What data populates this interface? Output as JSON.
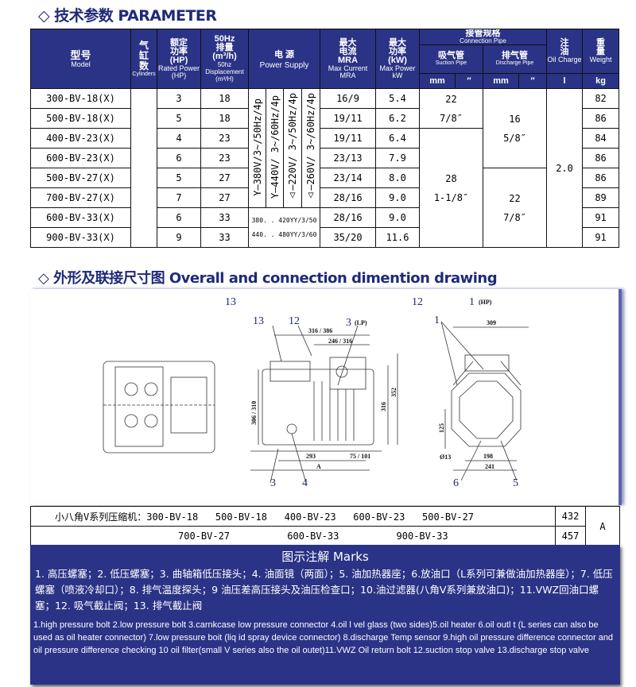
{
  "section1_title": "◇ 技术参数 PARAMETER",
  "section2_title": "◇ 外形及联接尺寸图 Overall and connection dimention drawing",
  "header": {
    "model": [
      "型号",
      "Model"
    ],
    "cylinders": [
      "气缸数",
      "Cylinders"
    ],
    "rated_power": [
      "额定功率",
      "(HP)",
      "Rated Power",
      "(HP)"
    ],
    "displacement": [
      "50Hz",
      "排量",
      "(m³/h)",
      "50hz Displacement",
      "(m³/H)"
    ],
    "power_supply": [
      "电 源",
      "Power Supply"
    ],
    "max_current": [
      "最大电流",
      "MRA",
      "Max Current",
      "MRA"
    ],
    "max_power": [
      "最大功率",
      "(kW)",
      "Max Power",
      "kW"
    ],
    "connection": [
      "接管规格",
      "Connection Pipe"
    ],
    "suction": [
      "吸气管",
      "Suction Pipe"
    ],
    "discharge": [
      "排气管",
      "Discharge Pipe"
    ],
    "oil": [
      "注油",
      "Oil Charge"
    ],
    "weight": [
      "重量",
      "Weight"
    ],
    "units": {
      "suction_mm": "mm",
      "suction_in": "″",
      "discharge_mm": "mm",
      "discharge_in": "″",
      "oil": "l",
      "weight": "kg"
    }
  },
  "power_supply_vertical": [
    "Y—380V/3~/50Hz/4p",
    "Y—440V/ 3~/60Hz/4p",
    "△—220V/ 3~/50Hz/4p",
    "△—260V/ 3~/60Hz/4p"
  ],
  "power_supply_33": [
    "380. . 420YY/3/50",
    "440. . 480YY/3/60"
  ],
  "suction_groups": [
    [
      "22",
      "7/8″"
    ],
    [
      "28",
      "1-1/8″"
    ]
  ],
  "discharge_groups": [
    [
      "16",
      "5/8″"
    ],
    [
      "22",
      "7/8″"
    ]
  ],
  "oil_charge": "2.0",
  "rows": [
    {
      "model": "300-BV-18(X)",
      "hp": "3",
      "disp": "18",
      "mra": "16/9",
      "kw": "5.4",
      "kg": "82"
    },
    {
      "model": "500-BV-18(X)",
      "hp": "5",
      "disp": "18",
      "mra": "19/11",
      "kw": "6.2",
      "kg": "86"
    },
    {
      "model": "400-BV-23(X)",
      "hp": "4",
      "disp": "23",
      "mra": "19/11",
      "kw": "6.4",
      "kg": "84"
    },
    {
      "model": "600-BV-23(X)",
      "hp": "6",
      "disp": "23",
      "mra": "23/13",
      "kw": "7.9",
      "kg": "86"
    },
    {
      "model": "500-BV-27(X)",
      "hp": "5",
      "disp": "27",
      "mra": "23/14",
      "kw": "8.0",
      "kg": "86"
    },
    {
      "model": "700-BV-27(X)",
      "hp": "7",
      "disp": "27",
      "mra": "28/16",
      "kw": "9.0",
      "kg": "89"
    },
    {
      "model": "600-BV-33(X)",
      "hp": "6",
      "disp": "33",
      "mra": "28/16",
      "kw": "9.0",
      "kg": "91"
    },
    {
      "model": "900-BV-33(X)",
      "hp": "9",
      "disp": "33",
      "mra": "35/20",
      "kw": "11.6",
      "kg": "91"
    }
  ],
  "drawing_labels": {
    "l13top": "13",
    "l12top": "12",
    "l1hp": "1",
    "hp": "(HP)",
    "l13": "13",
    "l12": "12",
    "l3lp": "3",
    "lp": "(LP)",
    "d316_386": "316 / 386",
    "d246_316": "246 / 316",
    "d306_310": "306 / 310",
    "d316": "316",
    "d352": "352",
    "d293": "293",
    "d75_101": "75 / 101",
    "dA": "A",
    "l3": "3",
    "l4": "4",
    "l1": "1",
    "d309": "309",
    "d125": "125",
    "d13": "Ø13",
    "d198": "198",
    "d241": "241",
    "l6": "6",
    "l5": "5"
  },
  "dimension_table": {
    "row1": "小八角V系列压缩机：300-BV-18   500-BV-18   400-BV-23   600-BV-23   500-BV-27",
    "row2": "700-BV-27          600-BV-33          900-BV-33",
    "v1": "432",
    "v2": "457",
    "col": "A"
  },
  "marks": {
    "title": "图示注解  Marks",
    "cn": "1. 高压螺塞；2. 低压螺塞；3. 曲轴箱低压接头；4. 油面镜（两面）；5. 油加热器座；6.放油口（L系列可兼做油加热器座）；7. 低压螺塞（喷液冷却口）；8. 排气温度探头；9 油压差高压接头及油压检查口；10.油过滤器(八角V系列兼放油口)；11.VWZ回油口螺塞；12. 吸气截止阀；13. 排气截止阀",
    "en": "1.high pressure bolt 2.low pressure bolt 3.carnkcase low pressure connector 4.oil l vel glass (two sides)5.oil heater 6.oil outl t (L series can also be used as oil heater connector) 7.low pressure boit (liq id spray device connector) 8.discharge Temp sensor 9.high oil pressure difference connector and oil pressure difference checking 10 oil filter(small V series also the oil outet)11.VWZ Oil return bolt 12.suction stop valve 13.discharge stop valve"
  },
  "colors": {
    "header_bg": "#2b3386",
    "title": "#1e2a78"
  }
}
